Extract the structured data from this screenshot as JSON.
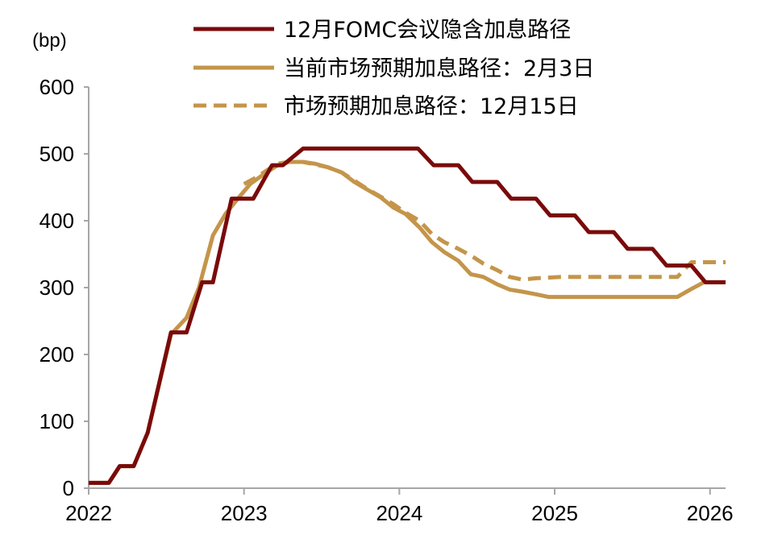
{
  "chart_data": {
    "type": "line",
    "title": "",
    "ylabel": "(bp)",
    "xlabel": "",
    "xlim": [
      2022.0,
      2026.1
    ],
    "ylim": [
      0,
      600
    ],
    "x_ticks": [
      "2022",
      "2023",
      "2024",
      "2025",
      "2026"
    ],
    "y_ticks": [
      "0",
      "100",
      "200",
      "300",
      "400",
      "500",
      "600"
    ],
    "grid": false,
    "legend_position": "top",
    "series": [
      {
        "name": "12月FOMC会议隐含加息路径",
        "color": "#7a0a0a",
        "style": "solid",
        "points": [
          [
            2022.0,
            8
          ],
          [
            2022.13,
            8
          ],
          [
            2022.2,
            33
          ],
          [
            2022.29,
            33
          ],
          [
            2022.38,
            83
          ],
          [
            2022.53,
            233
          ],
          [
            2022.63,
            233
          ],
          [
            2022.73,
            308
          ],
          [
            2022.8,
            308
          ],
          [
            2022.92,
            433
          ],
          [
            2023.06,
            433
          ],
          [
            2023.18,
            483
          ],
          [
            2023.25,
            483
          ],
          [
            2023.38,
            508
          ],
          [
            2023.63,
            508
          ],
          [
            2024.12,
            508
          ],
          [
            2024.22,
            483
          ],
          [
            2024.38,
            483
          ],
          [
            2024.47,
            458
          ],
          [
            2024.63,
            458
          ],
          [
            2024.72,
            433
          ],
          [
            2024.88,
            433
          ],
          [
            2024.97,
            408
          ],
          [
            2025.13,
            408
          ],
          [
            2025.22,
            383
          ],
          [
            2025.38,
            383
          ],
          [
            2025.47,
            358
          ],
          [
            2025.63,
            358
          ],
          [
            2025.72,
            333
          ],
          [
            2025.88,
            333
          ],
          [
            2025.97,
            308
          ],
          [
            2026.1,
            308
          ]
        ]
      },
      {
        "name": "当前市场预期加息路径：2月3日",
        "color": "#c4954a",
        "style": "solid",
        "points": [
          [
            2022.0,
            8
          ],
          [
            2022.13,
            8
          ],
          [
            2022.2,
            33
          ],
          [
            2022.29,
            33
          ],
          [
            2022.38,
            83
          ],
          [
            2022.53,
            230
          ],
          [
            2022.63,
            255
          ],
          [
            2022.71,
            300
          ],
          [
            2022.8,
            378
          ],
          [
            2022.88,
            410
          ],
          [
            2022.96,
            433
          ],
          [
            2023.04,
            455
          ],
          [
            2023.13,
            470
          ],
          [
            2023.21,
            482
          ],
          [
            2023.29,
            488
          ],
          [
            2023.38,
            488
          ],
          [
            2023.46,
            485
          ],
          [
            2023.54,
            480
          ],
          [
            2023.63,
            472
          ],
          [
            2023.71,
            458
          ],
          [
            2023.79,
            447
          ],
          [
            2023.88,
            435
          ],
          [
            2023.96,
            420
          ],
          [
            2024.04,
            410
          ],
          [
            2024.13,
            390
          ],
          [
            2024.21,
            368
          ],
          [
            2024.29,
            353
          ],
          [
            2024.38,
            340
          ],
          [
            2024.46,
            320
          ],
          [
            2024.54,
            316
          ],
          [
            2024.63,
            305
          ],
          [
            2024.71,
            297
          ],
          [
            2024.79,
            294
          ],
          [
            2024.88,
            290
          ],
          [
            2024.96,
            286
          ],
          [
            2025.04,
            286
          ],
          [
            2025.54,
            286
          ],
          [
            2025.79,
            286
          ],
          [
            2025.88,
            298
          ],
          [
            2025.96,
            308
          ],
          [
            2026.1,
            308
          ]
        ]
      },
      {
        "name": "市场预期加息路径：12月15日",
        "color": "#c4954a",
        "style": "dashed",
        "points": [
          [
            2023.0,
            455
          ],
          [
            2023.08,
            465
          ],
          [
            2023.21,
            485
          ],
          [
            2023.29,
            488
          ],
          [
            2023.38,
            488
          ],
          [
            2023.54,
            480
          ],
          [
            2023.63,
            472
          ],
          [
            2023.71,
            460
          ],
          [
            2023.79,
            448
          ],
          [
            2023.96,
            425
          ],
          [
            2024.04,
            412
          ],
          [
            2024.13,
            400
          ],
          [
            2024.21,
            380
          ],
          [
            2024.29,
            368
          ],
          [
            2024.38,
            358
          ],
          [
            2024.46,
            348
          ],
          [
            2024.54,
            336
          ],
          [
            2024.63,
            326
          ],
          [
            2024.71,
            316
          ],
          [
            2024.79,
            312
          ],
          [
            2024.88,
            314
          ],
          [
            2025.04,
            316
          ],
          [
            2025.54,
            316
          ],
          [
            2025.79,
            316
          ],
          [
            2025.88,
            338
          ],
          [
            2026.1,
            338
          ]
        ]
      }
    ]
  }
}
